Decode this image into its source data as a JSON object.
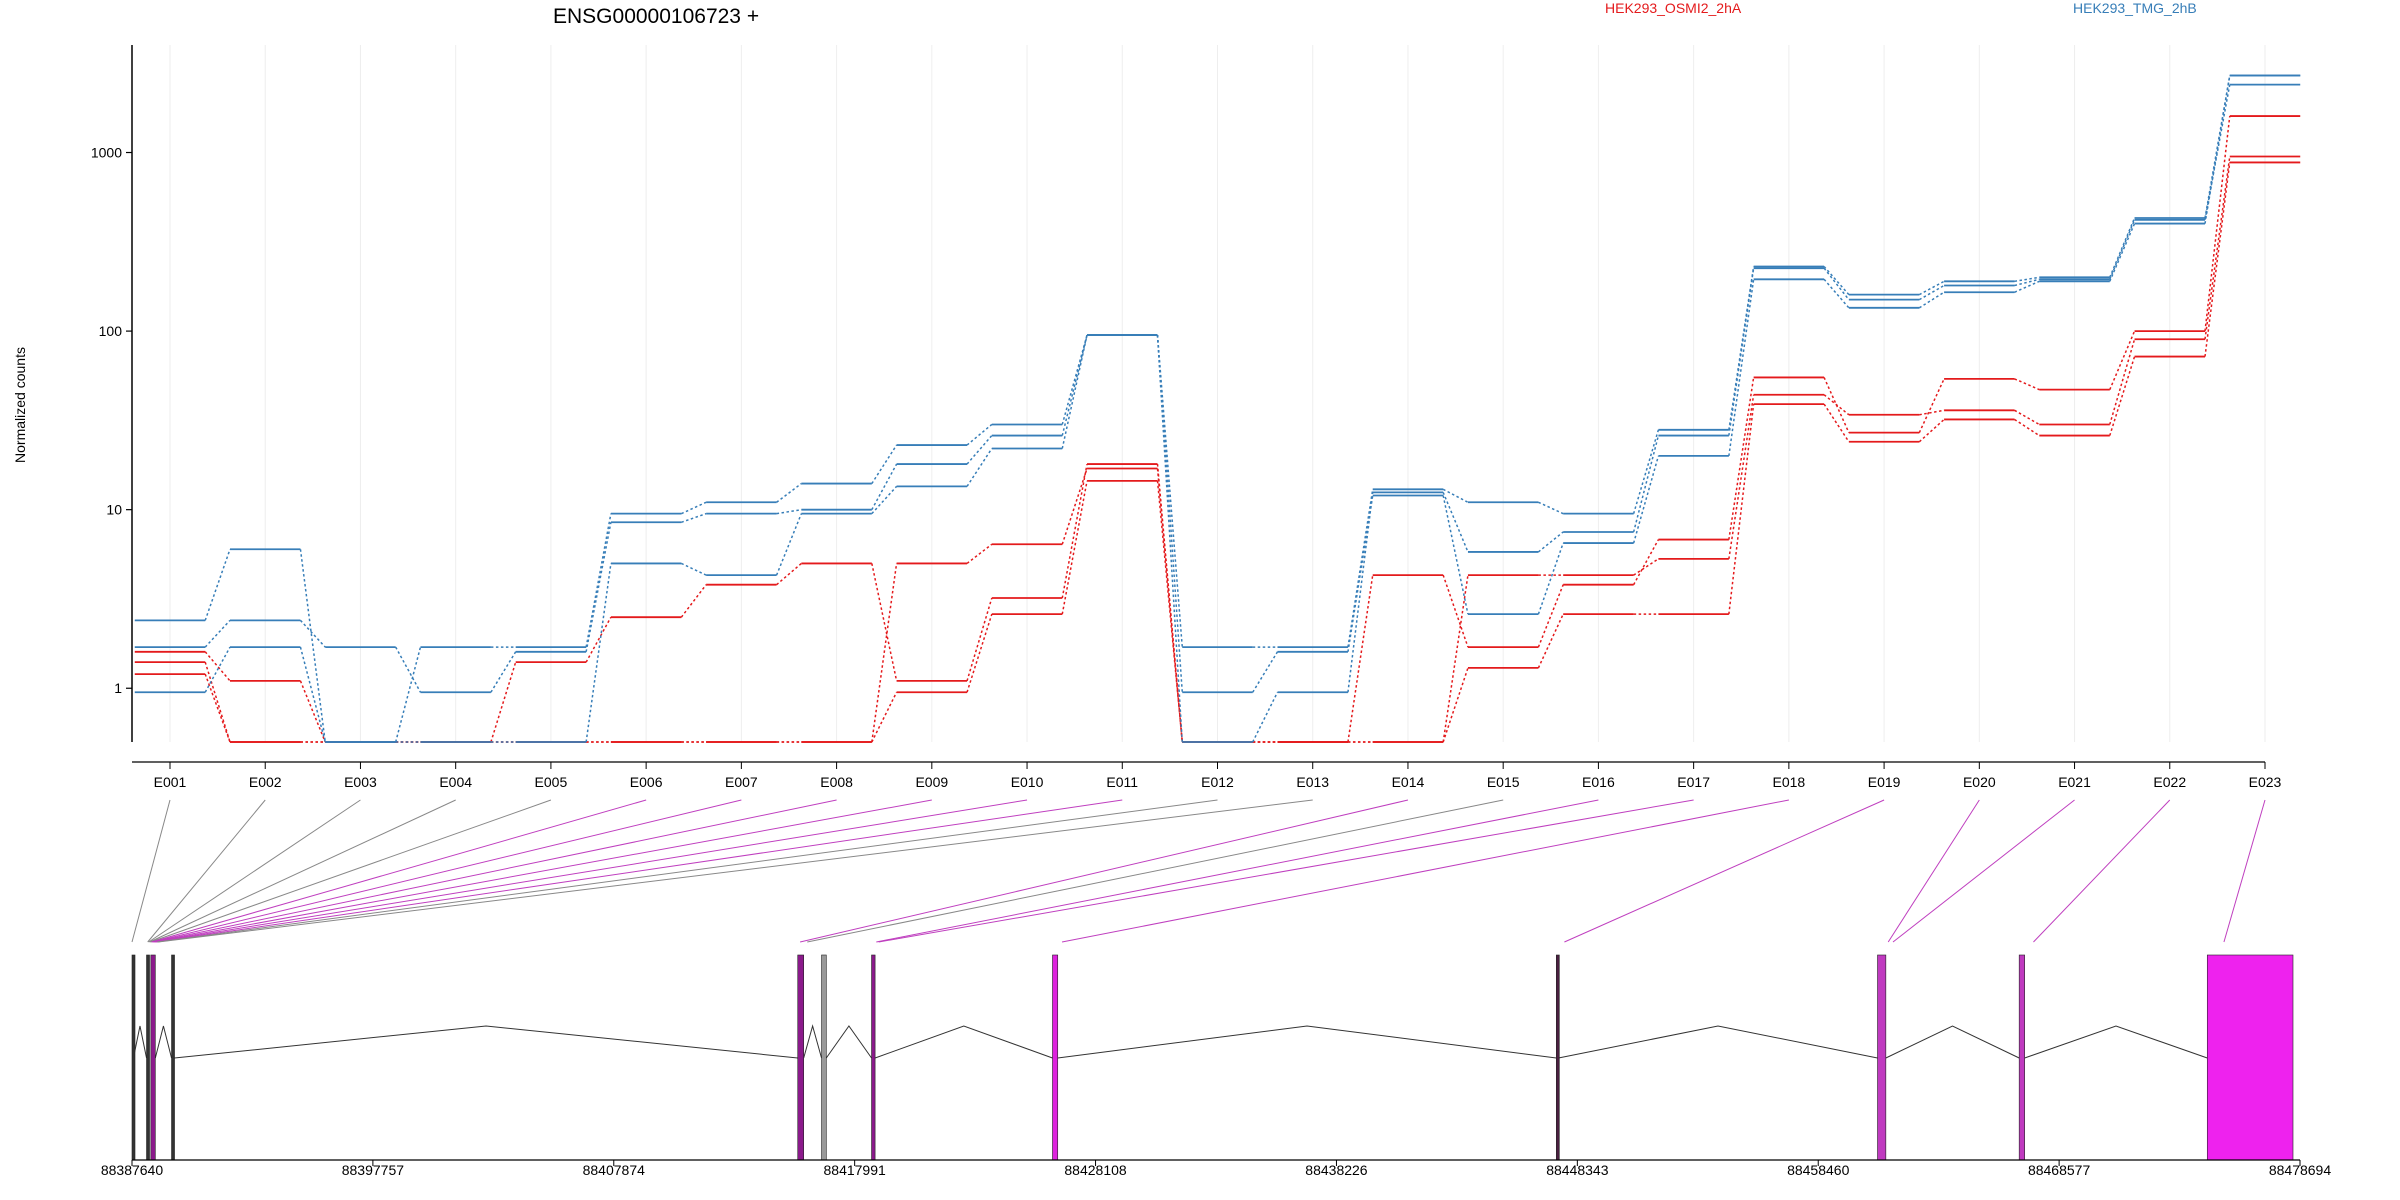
{
  "chart_data": {
    "type": "line",
    "title": "ENSG00000106723 +",
    "ylabel": "Normalized counts",
    "yscale": "log",
    "ylim": [
      0.5,
      4000
    ],
    "yticks": [
      1,
      10,
      100,
      1000
    ],
    "ytick_labels": [
      "1",
      "10",
      "100",
      "1000"
    ],
    "categories": [
      "E001",
      "E002",
      "E003",
      "E004",
      "E005",
      "E006",
      "E007",
      "E008",
      "E009",
      "E010",
      "E011",
      "E012",
      "E013",
      "E014",
      "E015",
      "E016",
      "E017",
      "E018",
      "E019",
      "E020",
      "E021",
      "E022",
      "E023"
    ],
    "legend": [
      {
        "label": "HEK293_OSMI2_2hA",
        "color": "#e41a1c"
      },
      {
        "label": "HEK293_TMG_2hB",
        "color": "#377eb8"
      }
    ],
    "series": [
      {
        "group": "HEK293_OSMI2_2hA",
        "color": "#e41a1c",
        "values": [
          1.4,
          0.5,
          0.5,
          0.5,
          1.4,
          2.5,
          3.8,
          5.0,
          1.1,
          3.2,
          18,
          0.5,
          0.5,
          4.3,
          1.7,
          3.8,
          6.8,
          55,
          27,
          54,
          47,
          100,
          1600
        ]
      },
      {
        "group": "HEK293_OSMI2_2hA",
        "color": "#e41a1c",
        "values": [
          1.6,
          1.1,
          0.5,
          0.5,
          0.5,
          0.5,
          0.5,
          0.5,
          5.0,
          6.4,
          17,
          0.5,
          0.5,
          0.5,
          4.3,
          4.3,
          5.3,
          44,
          34,
          36,
          30,
          90,
          950
        ]
      },
      {
        "group": "HEK293_OSMI2_2hA",
        "color": "#e41a1c",
        "values": [
          1.2,
          0.5,
          0.5,
          0.5,
          0.5,
          0.5,
          0.5,
          0.5,
          0.95,
          2.6,
          14.5,
          0.5,
          0.5,
          0.5,
          1.3,
          2.6,
          2.6,
          39,
          24,
          32,
          26,
          72,
          880
        ]
      },
      {
        "group": "HEK293_TMG_2hB",
        "color": "#377eb8",
        "values": [
          2.4,
          6.0,
          0.5,
          1.7,
          1.7,
          9.5,
          11,
          14,
          23,
          30,
          95,
          1.7,
          1.7,
          13,
          11,
          9.5,
          28,
          230,
          160,
          190,
          200,
          430,
          2700
        ]
      },
      {
        "group": "HEK293_TMG_2hB",
        "color": "#377eb8",
        "values": [
          1.7,
          2.4,
          1.7,
          0.95,
          1.6,
          8.5,
          9.5,
          10,
          18,
          26,
          95,
          0.5,
          0.95,
          12.5,
          5.8,
          7.5,
          26,
          225,
          150,
          180,
          195,
          420,
          2400
        ]
      },
      {
        "group": "HEK293_TMG_2hB",
        "color": "#377eb8",
        "values": [
          0.95,
          1.7,
          0.5,
          0.5,
          0.5,
          5.0,
          4.3,
          9.5,
          13.5,
          22,
          95,
          0.95,
          1.6,
          12,
          2.6,
          6.5,
          20,
          195,
          135,
          165,
          190,
          400,
          2700
        ]
      }
    ],
    "genomic_axis": {
      "ticks": [
        88387640,
        88397757,
        88407874,
        88417991,
        88428108,
        88438226,
        88448343,
        88458460,
        88468577,
        88478694
      ],
      "range": [
        88387640,
        88478694
      ]
    },
    "exon_mapping": [
      {
        "exon": "E001",
        "pos": 88387640,
        "color": "#888888"
      },
      {
        "exon": "E002",
        "pos": 88388300,
        "color": "#888888"
      },
      {
        "exon": "E003",
        "pos": 88388340,
        "color": "#888888"
      },
      {
        "exon": "E004",
        "pos": 88388380,
        "color": "#888888"
      },
      {
        "exon": "E005",
        "pos": 88388420,
        "color": "#888888"
      },
      {
        "exon": "E006",
        "pos": 88388460,
        "color": "#bf3fbf"
      },
      {
        "exon": "E007",
        "pos": 88388500,
        "color": "#bf3fbf"
      },
      {
        "exon": "E008",
        "pos": 88388540,
        "color": "#bf3fbf"
      },
      {
        "exon": "E009",
        "pos": 88388580,
        "color": "#bf3fbf"
      },
      {
        "exon": "E010",
        "pos": 88388620,
        "color": "#bf3fbf"
      },
      {
        "exon": "E011",
        "pos": 88388660,
        "color": "#bf3fbf"
      },
      {
        "exon": "E012",
        "pos": 88388700,
        "color": "#888888"
      },
      {
        "exon": "E013",
        "pos": 88388740,
        "color": "#888888"
      },
      {
        "exon": "E014",
        "pos": 88415700,
        "color": "#bf3fbf"
      },
      {
        "exon": "E015",
        "pos": 88416000,
        "color": "#888888"
      },
      {
        "exon": "E016",
        "pos": 88418900,
        "color": "#bf3fbf"
      },
      {
        "exon": "E017",
        "pos": 88419000,
        "color": "#bf3fbf"
      },
      {
        "exon": "E018",
        "pos": 88426700,
        "color": "#bf3fbf"
      },
      {
        "exon": "E019",
        "pos": 88447800,
        "color": "#bf3fbf"
      },
      {
        "exon": "E020",
        "pos": 88461400,
        "color": "#bf3fbf"
      },
      {
        "exon": "E021",
        "pos": 88461600,
        "color": "#bf3fbf"
      },
      {
        "exon": "E022",
        "pos": 88467500,
        "color": "#bf3fbf"
      },
      {
        "exon": "E023",
        "pos": 88475500,
        "color": "#bf3fbf"
      }
    ],
    "gene_model": {
      "exons": [
        {
          "start": 88387640,
          "end": 88387700,
          "color": "#333333"
        },
        {
          "start": 88388250,
          "end": 88388350,
          "color": "#333333"
        },
        {
          "start": 88388430,
          "end": 88388620,
          "color": "#8b1a8b"
        },
        {
          "start": 88389300,
          "end": 88389420,
          "color": "#333333"
        },
        {
          "start": 88415600,
          "end": 88415850,
          "color": "#8b1a8b"
        },
        {
          "start": 88416600,
          "end": 88416800,
          "color": "#999999"
        },
        {
          "start": 88418700,
          "end": 88418850,
          "color": "#8b1a8b"
        },
        {
          "start": 88426300,
          "end": 88426520,
          "color": "#dd22dd"
        },
        {
          "start": 88447460,
          "end": 88447550,
          "color": "#4a2040"
        },
        {
          "start": 88460950,
          "end": 88461300,
          "color": "#c03ac0"
        },
        {
          "start": 88466900,
          "end": 88467130,
          "color": "#c03ac0"
        },
        {
          "start": 88474800,
          "end": 88478400,
          "color": "#ee22ee"
        }
      ]
    }
  }
}
